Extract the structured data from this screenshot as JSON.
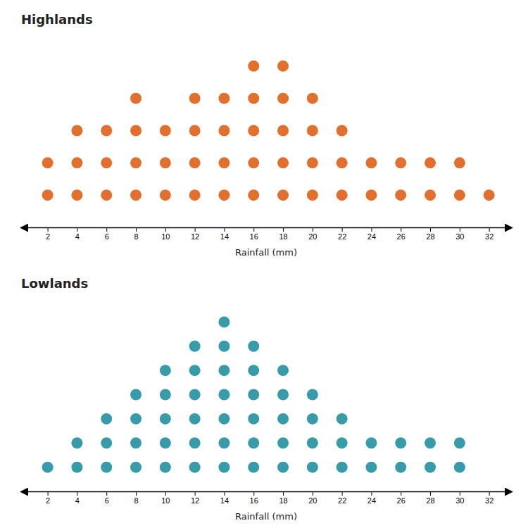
{
  "chart_data": [
    {
      "type": "dot",
      "title": "Highlands",
      "xlabel": "Rainfall (mm)",
      "x": [
        2,
        4,
        6,
        8,
        10,
        12,
        14,
        16,
        18,
        20,
        22,
        24,
        26,
        28,
        30,
        32
      ],
      "values": [
        2,
        3,
        3,
        4,
        3,
        4,
        4,
        5,
        5,
        4,
        3,
        2,
        2,
        2,
        2,
        1
      ],
      "color": "#E07030",
      "xlim": [
        0.2,
        33.5
      ],
      "xticks": [
        2,
        4,
        6,
        8,
        10,
        12,
        14,
        16,
        18,
        20,
        22,
        24,
        26,
        28,
        30,
        32
      ],
      "ylim": [
        0,
        6
      ],
      "grid": false,
      "tick_labels": "x"
    },
    {
      "type": "dot",
      "title": "Lowlands",
      "xlabel": "Rainfall (mm)",
      "x": [
        2,
        4,
        6,
        8,
        10,
        12,
        14,
        16,
        18,
        20,
        22,
        24,
        26,
        28,
        30
      ],
      "values": [
        1,
        2,
        3,
        4,
        5,
        6,
        7,
        6,
        5,
        4,
        3,
        2,
        2,
        2,
        2
      ],
      "color": "#3A9BA8",
      "xlim": [
        0.2,
        33.5
      ],
      "xticks": [
        2,
        4,
        6,
        8,
        10,
        12,
        14,
        16,
        18,
        20,
        22,
        24,
        26,
        28,
        30,
        32
      ],
      "ylim": [
        0,
        8
      ],
      "grid": false,
      "tick_labels": "x"
    }
  ]
}
